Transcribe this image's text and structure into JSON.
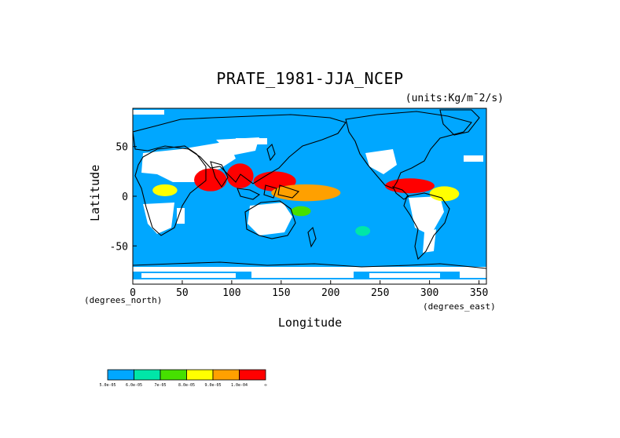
{
  "title": "PRATE_1981-JJA_NCEP",
  "units": "(units:Kg/m¯2/s)",
  "axes": {
    "xlabel": "Longitude",
    "ylabel": "Latitude",
    "x_unit_label": "(degrees_east)",
    "y_unit_label": "(degrees_north)",
    "x_ticks": [
      "0",
      "50",
      "100",
      "150",
      "200",
      "250",
      "300",
      "350"
    ],
    "y_ticks": [
      "50",
      "0",
      "-50"
    ],
    "xlim": [
      0,
      357.5
    ],
    "ylim": [
      -88.5,
      88.5
    ]
  },
  "colorbar": {
    "labels": [
      "5.0e-05",
      "6.0e-05",
      "7e-05",
      "8.0e-05",
      "9.0e-05",
      "1.0e-04",
      "∞"
    ],
    "colors": [
      "#00a7ff",
      "#00e6a8",
      "#46e000",
      "#ffff00",
      "#ffa000",
      "#ff0000"
    ]
  },
  "chart_data": {
    "type": "heatmap",
    "title": "PRATE_1981-JJA_NCEP",
    "xlabel": "Longitude",
    "ylabel": "Latitude",
    "xlim": [
      0,
      357.5
    ],
    "ylim": [
      -88.5,
      88.5
    ],
    "levels": [
      5e-05,
      6e-05,
      7e-05,
      8e-05,
      9e-05,
      0.0001
    ],
    "background_color": "#00a7ff",
    "regions": [
      {
        "level": "1.0e-04",
        "lon": [
          62,
          95
        ],
        "lat": [
          5,
          28
        ]
      },
      {
        "level": "1.0e-04",
        "lon": [
          95,
          122
        ],
        "lat": [
          8,
          33
        ]
      },
      {
        "level": "1.0e-04",
        "lon": [
          122,
          165
        ],
        "lat": [
          5,
          25
        ]
      },
      {
        "level": "1.0e-04",
        "lon": [
          160,
          200
        ],
        "lat": [
          0,
          10
        ]
      },
      {
        "level": "1.0e-04",
        "lon": [
          255,
          305
        ],
        "lat": [
          3,
          18
        ]
      },
      {
        "level": "9.0e-05",
        "lon": [
          140,
          210
        ],
        "lat": [
          -5,
          12
        ]
      },
      {
        "level": "8.0e-05",
        "lon": [
          20,
          45
        ],
        "lat": [
          0,
          12
        ]
      },
      {
        "level": "8.0e-05",
        "lon": [
          300,
          330
        ],
        "lat": [
          -5,
          10
        ]
      },
      {
        "level": "7e-05",
        "lon": [
          160,
          180
        ],
        "lat": [
          -20,
          -10
        ]
      },
      {
        "level": "6.0e-05",
        "lon": [
          225,
          240
        ],
        "lat": [
          -40,
          -30
        ]
      }
    ]
  }
}
